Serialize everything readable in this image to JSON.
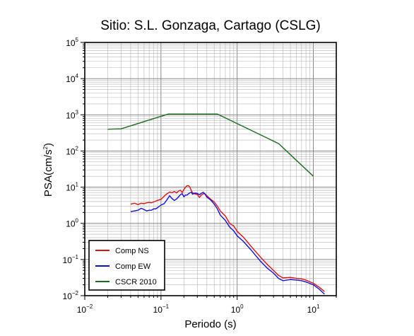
{
  "chart_data": {
    "type": "line",
    "title": "Sitio: S.L. Gonzaga, Cartago (CSLG)",
    "xlabel": "Periodo (s)",
    "ylabel_main": "PSA(cm/s",
    "ylabel_sup": "2",
    "ylabel_tail": ")",
    "xscale": "log",
    "yscale": "log",
    "xlim": [
      0.01,
      20
    ],
    "ylim": [
      0.01,
      100000
    ],
    "grid": true,
    "legend_position": "bottom-left",
    "x_ticks": [
      {
        "base": "10",
        "exp": "−2",
        "value": 0.01
      },
      {
        "base": "10",
        "exp": "−1",
        "value": 0.1
      },
      {
        "base": "10",
        "exp": "0",
        "value": 1
      },
      {
        "base": "10",
        "exp": "1",
        "value": 10
      }
    ],
    "y_ticks": [
      {
        "base": "10",
        "exp": "−2",
        "value": 0.01
      },
      {
        "base": "10",
        "exp": "−1",
        "value": 0.1
      },
      {
        "base": "10",
        "exp": "0",
        "value": 1
      },
      {
        "base": "10",
        "exp": "1",
        "value": 10
      },
      {
        "base": "10",
        "exp": "2",
        "value": 100
      },
      {
        "base": "10",
        "exp": "3",
        "value": 1000
      },
      {
        "base": "10",
        "exp": "4",
        "value": 10000
      },
      {
        "base": "10",
        "exp": "5",
        "value": 100000
      }
    ],
    "series": [
      {
        "name": "Comp NS",
        "color": "#e01010",
        "x": [
          0.04,
          0.045,
          0.05,
          0.055,
          0.06,
          0.065,
          0.07,
          0.075,
          0.08,
          0.085,
          0.09,
          0.1,
          0.11,
          0.12,
          0.13,
          0.14,
          0.15,
          0.16,
          0.17,
          0.18,
          0.19,
          0.2,
          0.21,
          0.22,
          0.23,
          0.24,
          0.25,
          0.26,
          0.28,
          0.3,
          0.32,
          0.34,
          0.36,
          0.38,
          0.4,
          0.45,
          0.5,
          0.55,
          0.6,
          0.7,
          0.8,
          0.9,
          1.0,
          1.2,
          1.5,
          2.0,
          2.5,
          3.0,
          3.5,
          4.0,
          5.0,
          6.0,
          7.0,
          8.0,
          10.0,
          12.0,
          14.0
        ],
        "y": [
          3.4,
          3.6,
          3.3,
          3.6,
          3.5,
          3.7,
          3.8,
          3.7,
          3.9,
          4.1,
          4.3,
          4.6,
          5.6,
          6.6,
          7.3,
          7.0,
          7.6,
          6.9,
          7.8,
          8.2,
          7.1,
          8.6,
          10.0,
          11.0,
          11.0,
          10.0,
          8.0,
          7.0,
          6.5,
          6.3,
          5.2,
          6.1,
          6.6,
          6.5,
          5.8,
          4.6,
          3.9,
          3.0,
          2.2,
          1.6,
          0.98,
          0.85,
          0.6,
          0.42,
          0.24,
          0.12,
          0.072,
          0.05,
          0.036,
          0.031,
          0.032,
          0.03,
          0.029,
          0.027,
          0.022,
          0.017,
          0.013
        ]
      },
      {
        "name": "Comp EW",
        "color": "#1010e0",
        "x": [
          0.04,
          0.045,
          0.05,
          0.055,
          0.06,
          0.065,
          0.07,
          0.075,
          0.08,
          0.085,
          0.09,
          0.1,
          0.11,
          0.12,
          0.13,
          0.14,
          0.15,
          0.16,
          0.17,
          0.18,
          0.19,
          0.2,
          0.21,
          0.22,
          0.23,
          0.24,
          0.25,
          0.26,
          0.28,
          0.3,
          0.32,
          0.34,
          0.36,
          0.38,
          0.4,
          0.45,
          0.5,
          0.55,
          0.6,
          0.7,
          0.8,
          0.9,
          1.0,
          1.2,
          1.5,
          2.0,
          2.5,
          3.0,
          3.5,
          4.0,
          5.0,
          6.0,
          7.0,
          8.0,
          10.0,
          12.0,
          14.0
        ],
        "y": [
          2.1,
          2.2,
          2.3,
          2.6,
          2.4,
          2.2,
          2.3,
          2.3,
          2.5,
          2.5,
          2.7,
          3.2,
          3.5,
          4.5,
          5.8,
          4.8,
          4.3,
          4.7,
          5.4,
          6.2,
          6.6,
          5.4,
          6.1,
          6.0,
          6.6,
          7.0,
          7.2,
          6.4,
          6.9,
          6.7,
          6.2,
          6.8,
          7.2,
          6.4,
          5.3,
          4.4,
          3.4,
          2.5,
          1.7,
          1.2,
          0.78,
          0.62,
          0.45,
          0.32,
          0.19,
          0.092,
          0.057,
          0.042,
          0.03,
          0.026,
          0.028,
          0.027,
          0.026,
          0.024,
          0.02,
          0.015,
          0.011
        ]
      },
      {
        "name": "CSCR 2010",
        "color": "#1a6b1a",
        "x": [
          0.02,
          0.03,
          0.125,
          0.55,
          3.5,
          10.0
        ],
        "y": [
          400,
          410,
          1050,
          1050,
          160,
          20
        ]
      }
    ]
  }
}
